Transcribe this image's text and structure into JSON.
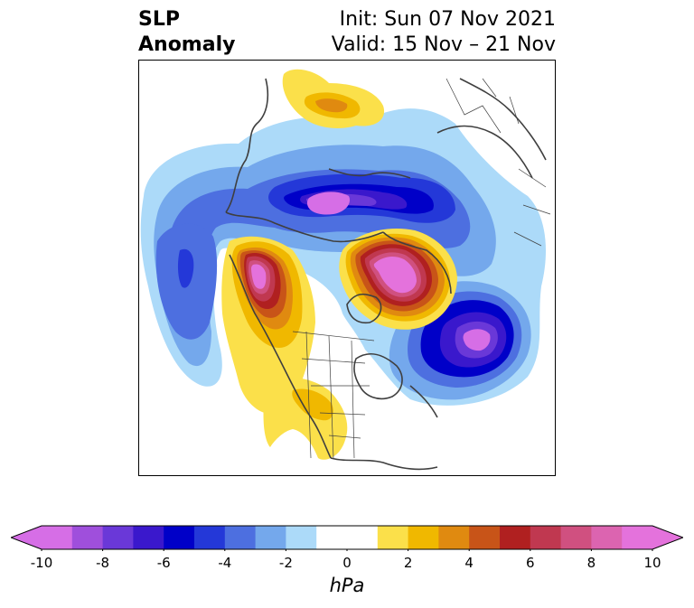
{
  "title": {
    "left_line1": "SLP",
    "left_line2": "Anomaly",
    "right_line1": "Init: Sun 07 Nov 2021",
    "right_line2": "Valid: 15 Nov – 21 Nov"
  },
  "colorbar": {
    "units": "hPa",
    "ticks": [
      "-10",
      "-8",
      "-6",
      "-4",
      "-2",
      "0",
      "2",
      "4",
      "6",
      "8",
      "10"
    ],
    "bins": [
      {
        "range": [
          -10,
          -9
        ],
        "color": "#d66ee6"
      },
      {
        "range": [
          -9,
          -8
        ],
        "color": "#9f4fdc"
      },
      {
        "range": [
          -8,
          -7
        ],
        "color": "#6a38d8"
      },
      {
        "range": [
          -7,
          -6
        ],
        "color": "#3a18cc"
      },
      {
        "range": [
          -6,
          -5
        ],
        "color": "#0000c8"
      },
      {
        "range": [
          -5,
          -4
        ],
        "color": "#2438d8"
      },
      {
        "range": [
          -4,
          -3
        ],
        "color": "#4d6fe0"
      },
      {
        "range": [
          -3,
          -2
        ],
        "color": "#74a8ec"
      },
      {
        "range": [
          -2,
          -1
        ],
        "color": "#acdaf9"
      },
      {
        "range": [
          -1,
          1
        ],
        "color": "#ffffff"
      },
      {
        "range": [
          1,
          2
        ],
        "color": "#fbe04a"
      },
      {
        "range": [
          2,
          3
        ],
        "color": "#f0b800"
      },
      {
        "range": [
          3,
          4
        ],
        "color": "#e08a10"
      },
      {
        "range": [
          4,
          5
        ],
        "color": "#c85418"
      },
      {
        "range": [
          5,
          6
        ],
        "color": "#b02020"
      },
      {
        "range": [
          6,
          7
        ],
        "color": "#c03850"
      },
      {
        "range": [
          7,
          8
        ],
        "color": "#d05080"
      },
      {
        "range": [
          8,
          9
        ],
        "color": "#dc64b0"
      },
      {
        "range": [
          9,
          10
        ],
        "color": "#e472dc"
      }
    ],
    "extend": "both"
  },
  "map": {
    "projection": "polar stereographic, Northern Hemisphere",
    "field": "sea level pressure anomaly",
    "features": [
      {
        "name": "low-arctic-siberia",
        "sign": "negative",
        "peak": -9
      },
      {
        "name": "low-north-atlantic",
        "sign": "negative",
        "peak": -9
      },
      {
        "name": "low-north-pacific",
        "sign": "negative",
        "peak": -4
      },
      {
        "name": "high-alaska-gulf",
        "sign": "positive",
        "peak": 10
      },
      {
        "name": "high-greenland",
        "sign": "positive",
        "peak": 10
      },
      {
        "name": "high-north-america",
        "sign": "positive",
        "peak": 2
      },
      {
        "name": "high-central-asia",
        "sign": "positive",
        "peak": 4
      }
    ]
  }
}
